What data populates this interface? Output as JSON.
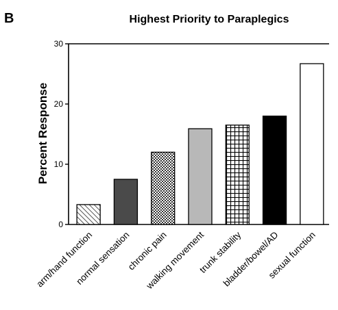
{
  "panel_label": "B",
  "chart_data": {
    "type": "bar",
    "title": "Highest Priority to Paraplegics",
    "xlabel": "",
    "ylabel": "Percent Response",
    "ylim": [
      0,
      30
    ],
    "yticks": [
      0,
      10,
      20,
      30
    ],
    "grid": false,
    "categories": [
      "arm/hand function",
      "normal sensation",
      "chronic pain",
      "walking movement",
      "trunk stability",
      "bladder/bowel/AD",
      "sexual function"
    ],
    "values": [
      3.3,
      7.5,
      12.0,
      15.9,
      16.5,
      18.0,
      26.7
    ],
    "patterns": [
      "diagonal-hatch",
      "dark-gray",
      "checker",
      "light-gray",
      "grid",
      "black",
      "white"
    ],
    "colors": {
      "bar_stroke": "#000000",
      "dark_fill": "#4a4a4a",
      "light_fill": "#b8b8b8",
      "black_fill": "#000000"
    }
  }
}
